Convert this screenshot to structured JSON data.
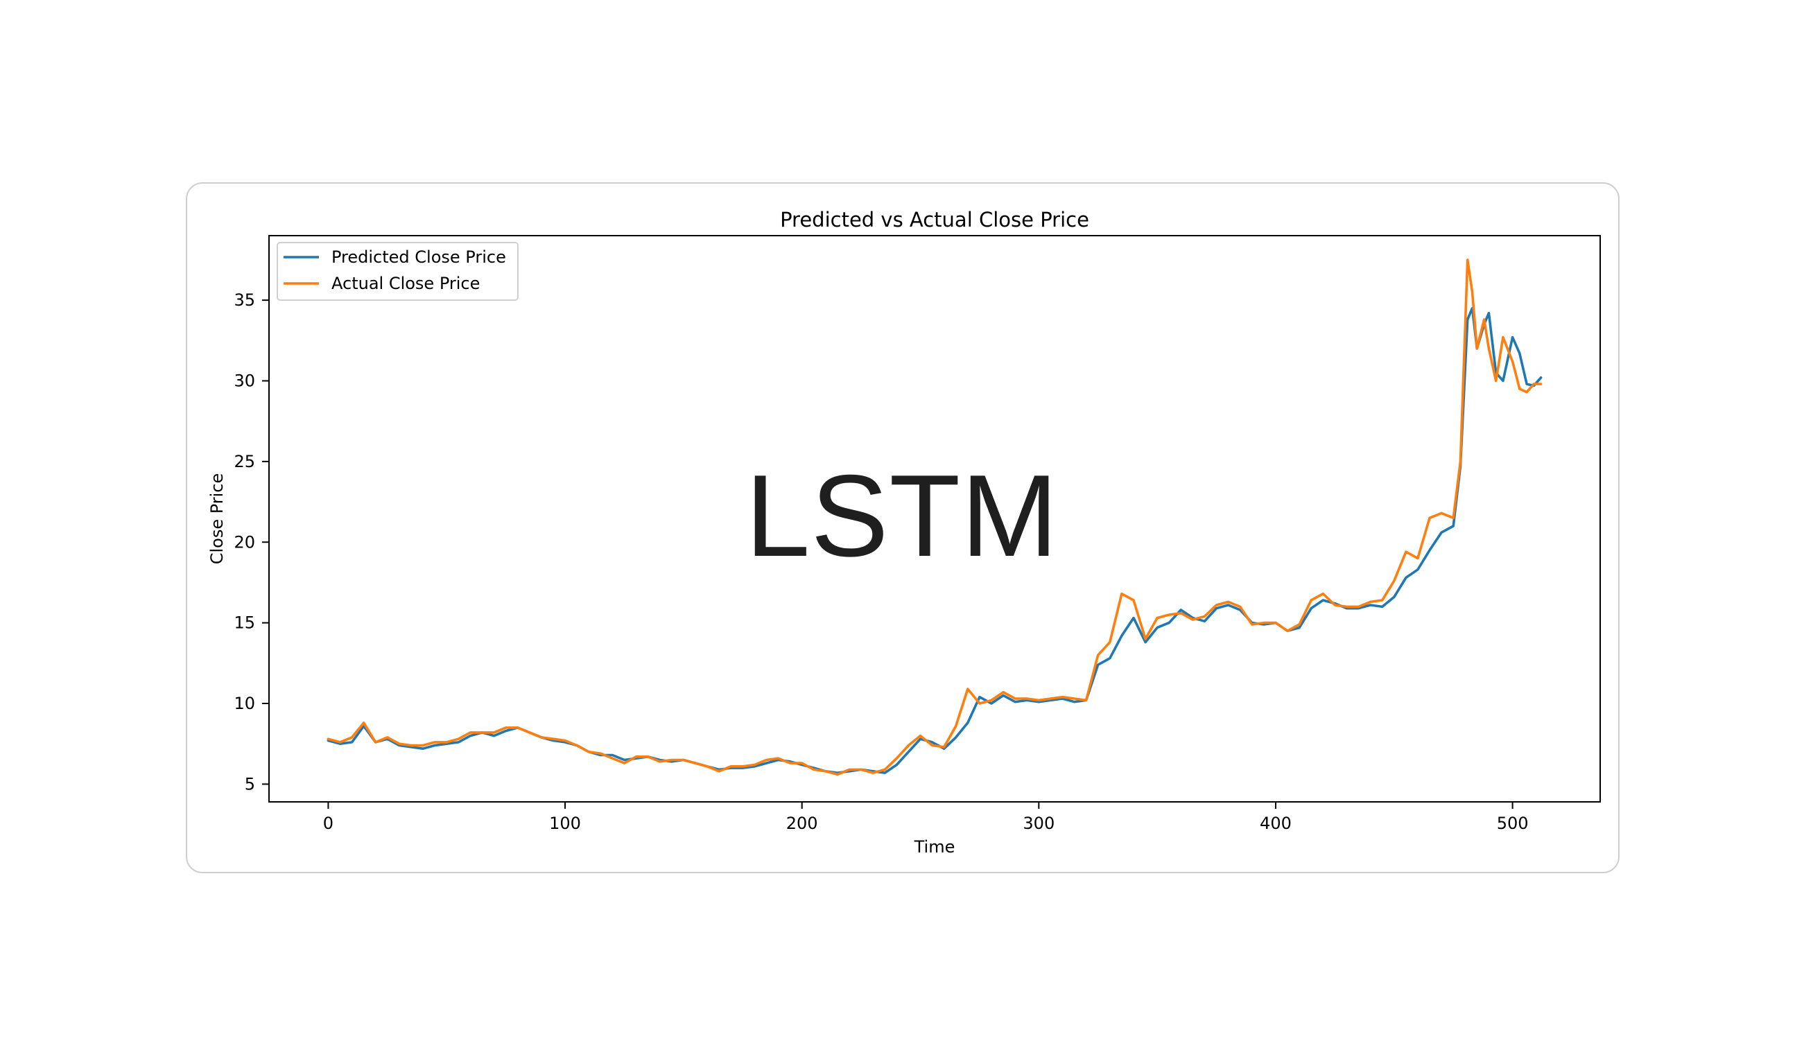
{
  "overlay_label": "LSTM",
  "chart_data": {
    "type": "line",
    "title": "Predicted vs Actual Close Price",
    "xlabel": "Time",
    "ylabel": "Close Price",
    "xlim": [
      -25,
      537
    ],
    "ylim": [
      3.9,
      39
    ],
    "xticks": [
      0,
      100,
      200,
      300,
      400,
      500
    ],
    "yticks": [
      5,
      10,
      15,
      20,
      25,
      30,
      35
    ],
    "legend_position": "upper-left",
    "series": [
      {
        "name": "Predicted Close Price",
        "color": "#1f77b4",
        "x": [
          0,
          5,
          10,
          15,
          20,
          25,
          30,
          35,
          40,
          45,
          50,
          55,
          60,
          65,
          70,
          75,
          80,
          85,
          90,
          95,
          100,
          105,
          110,
          115,
          120,
          125,
          130,
          135,
          140,
          145,
          150,
          155,
          160,
          165,
          170,
          175,
          180,
          185,
          190,
          195,
          200,
          205,
          210,
          215,
          220,
          225,
          230,
          235,
          240,
          245,
          250,
          255,
          260,
          265,
          270,
          275,
          280,
          285,
          290,
          295,
          300,
          305,
          310,
          315,
          320,
          325,
          330,
          335,
          340,
          345,
          350,
          355,
          360,
          365,
          370,
          375,
          380,
          385,
          390,
          395,
          400,
          405,
          410,
          415,
          420,
          425,
          430,
          435,
          440,
          445,
          450,
          455,
          460,
          465,
          470,
          475,
          478,
          481,
          483,
          485,
          488,
          490,
          493,
          496,
          500,
          503,
          506,
          509,
          512
        ],
        "y": [
          7.7,
          7.5,
          7.6,
          8.6,
          7.6,
          7.8,
          7.4,
          7.3,
          7.2,
          7.4,
          7.5,
          7.6,
          8.0,
          8.2,
          8.0,
          8.3,
          8.5,
          8.2,
          7.9,
          7.7,
          7.6,
          7.4,
          7.0,
          6.8,
          6.8,
          6.5,
          6.6,
          6.7,
          6.5,
          6.4,
          6.5,
          6.3,
          6.1,
          5.9,
          6.0,
          6.0,
          6.1,
          6.3,
          6.5,
          6.4,
          6.2,
          6.0,
          5.8,
          5.7,
          5.8,
          5.9,
          5.8,
          5.7,
          6.2,
          7.0,
          7.8,
          7.6,
          7.2,
          7.9,
          8.8,
          10.4,
          10.0,
          10.5,
          10.1,
          10.2,
          10.1,
          10.2,
          10.3,
          10.1,
          10.2,
          12.4,
          12.8,
          14.2,
          15.3,
          13.8,
          14.7,
          15.0,
          15.8,
          15.3,
          15.1,
          15.9,
          16.1,
          15.8,
          15.0,
          14.9,
          15.0,
          14.5,
          14.7,
          15.9,
          16.4,
          16.2,
          15.9,
          15.9,
          16.1,
          16.0,
          16.6,
          17.8,
          18.3,
          19.5,
          20.6,
          21.0,
          24.7,
          33.8,
          34.5,
          32.0,
          33.5,
          34.2,
          30.5,
          30.0,
          32.7,
          31.7,
          29.8,
          29.7,
          30.2
        ]
      },
      {
        "name": "Actual Close Price",
        "color": "#ff7f0e",
        "x": [
          0,
          5,
          10,
          15,
          20,
          25,
          30,
          35,
          40,
          45,
          50,
          55,
          60,
          65,
          70,
          75,
          80,
          85,
          90,
          95,
          100,
          105,
          110,
          115,
          120,
          125,
          130,
          135,
          140,
          145,
          150,
          155,
          160,
          165,
          170,
          175,
          180,
          185,
          190,
          195,
          200,
          205,
          210,
          215,
          220,
          225,
          230,
          235,
          240,
          245,
          250,
          255,
          260,
          265,
          270,
          275,
          280,
          285,
          290,
          295,
          300,
          305,
          310,
          315,
          320,
          325,
          330,
          335,
          340,
          345,
          350,
          355,
          360,
          365,
          370,
          375,
          380,
          385,
          390,
          395,
          400,
          405,
          410,
          415,
          420,
          425,
          430,
          435,
          440,
          445,
          450,
          455,
          460,
          465,
          470,
          475,
          478,
          481,
          483,
          485,
          488,
          490,
          493,
          496,
          500,
          503,
          506,
          509,
          512
        ],
        "y": [
          7.8,
          7.6,
          7.9,
          8.8,
          7.6,
          7.9,
          7.5,
          7.4,
          7.4,
          7.6,
          7.6,
          7.8,
          8.2,
          8.2,
          8.2,
          8.5,
          8.5,
          8.2,
          7.9,
          7.8,
          7.7,
          7.4,
          7.0,
          6.9,
          6.6,
          6.3,
          6.7,
          6.7,
          6.4,
          6.5,
          6.5,
          6.3,
          6.1,
          5.8,
          6.1,
          6.1,
          6.2,
          6.5,
          6.6,
          6.3,
          6.3,
          5.9,
          5.8,
          5.6,
          5.9,
          5.9,
          5.7,
          5.9,
          6.6,
          7.4,
          8.0,
          7.4,
          7.3,
          8.6,
          10.9,
          10.0,
          10.2,
          10.7,
          10.3,
          10.3,
          10.2,
          10.3,
          10.4,
          10.3,
          10.2,
          13.0,
          13.8,
          16.8,
          16.4,
          14.0,
          15.3,
          15.5,
          15.6,
          15.2,
          15.4,
          16.1,
          16.3,
          16.0,
          14.9,
          15.0,
          15.0,
          14.5,
          14.9,
          16.4,
          16.8,
          16.1,
          16.0,
          16.0,
          16.3,
          16.4,
          17.6,
          19.4,
          19.0,
          21.5,
          21.8,
          21.5,
          25.0,
          37.5,
          35.5,
          32.0,
          33.8,
          32.0,
          30.0,
          32.7,
          31.2,
          29.5,
          29.3,
          29.8,
          29.8
        ]
      }
    ]
  }
}
